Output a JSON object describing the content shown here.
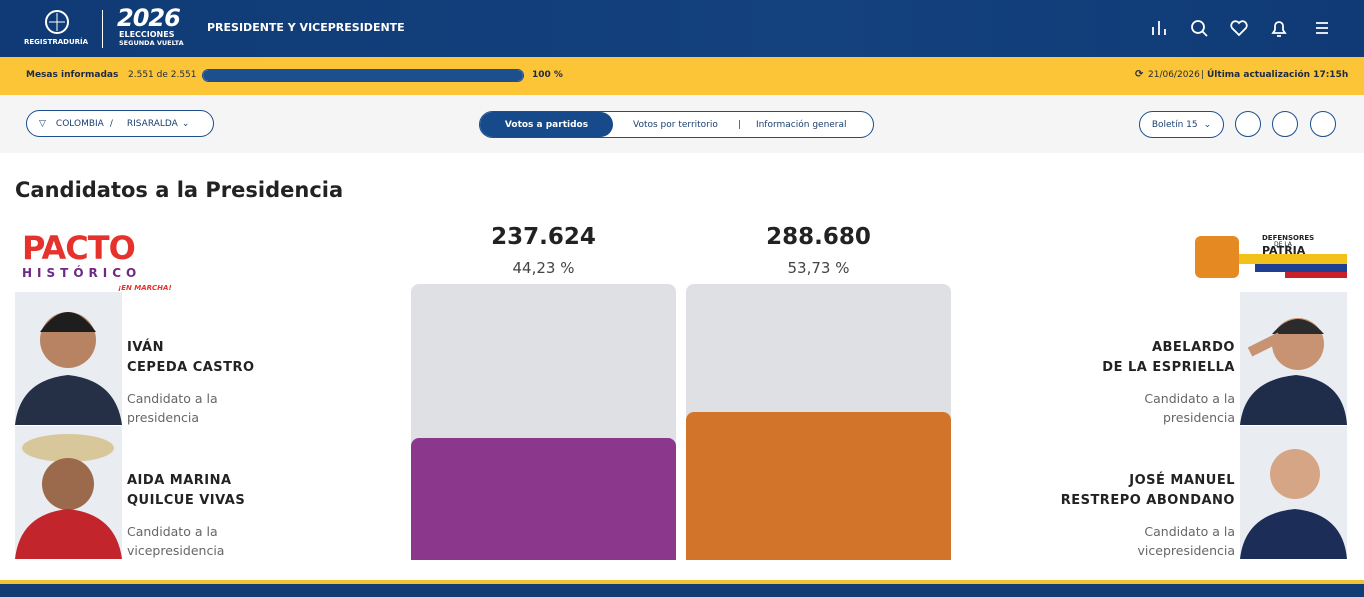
{
  "header": {
    "org": "REGISTRADURÍA",
    "logo_year": "2026",
    "logo_line1": "ELECCIONES",
    "logo_line2": "SEGUNDA VUELTA",
    "title": "PRESIDENTE Y VICEPRESIDENTE"
  },
  "status": {
    "label": "Mesas informadas",
    "count": "2.551 de 2.551",
    "progress": {
      "value": 100,
      "label": "100 %"
    },
    "date": "21/06/2026",
    "separator": "|",
    "updated": "Última actualización 17:15h"
  },
  "filters": {
    "country": "COLOMBIA",
    "separator": "/",
    "region": "RISARALDA",
    "tabs": [
      "Votos a partidos",
      "Votos por territorio",
      "Información general"
    ],
    "tab_separator": "|",
    "bulletin": "Boletín 15"
  },
  "section_title": "Candidatos a la Presidencia",
  "results": [
    {
      "party_logo": [
        "PACTO",
        "HISTÓRICO",
        "¡EN MARCHA!"
      ],
      "votes": "237.624",
      "percent": {
        "value": 44.23,
        "label": "44,23 %"
      },
      "candidates": [
        {
          "name": [
            "IVÁN",
            "CEPEDA CASTRO"
          ],
          "role": [
            "Candidato a la",
            "presidencia"
          ]
        },
        {
          "name": [
            "AIDA MARINA",
            "QUILCUE VIVAS"
          ],
          "role": [
            "Candidato a la",
            "vicepresidencia"
          ]
        }
      ]
    },
    {
      "party_logo": [
        "DEFENSORES",
        "DE LA",
        "PATRIA"
      ],
      "votes": "288.680",
      "percent": {
        "value": 53.73,
        "label": "53,73 %"
      },
      "candidates": [
        {
          "name": [
            "ABELARDO",
            "DE LA ESPRIELLA"
          ],
          "role": [
            "Candidato a la",
            "presidencia"
          ]
        },
        {
          "name": [
            "JOSÉ MANUEL",
            "RESTREPO ABONDANO"
          ],
          "role": [
            "Candidato a la",
            "vicepresidencia"
          ]
        }
      ]
    }
  ]
}
